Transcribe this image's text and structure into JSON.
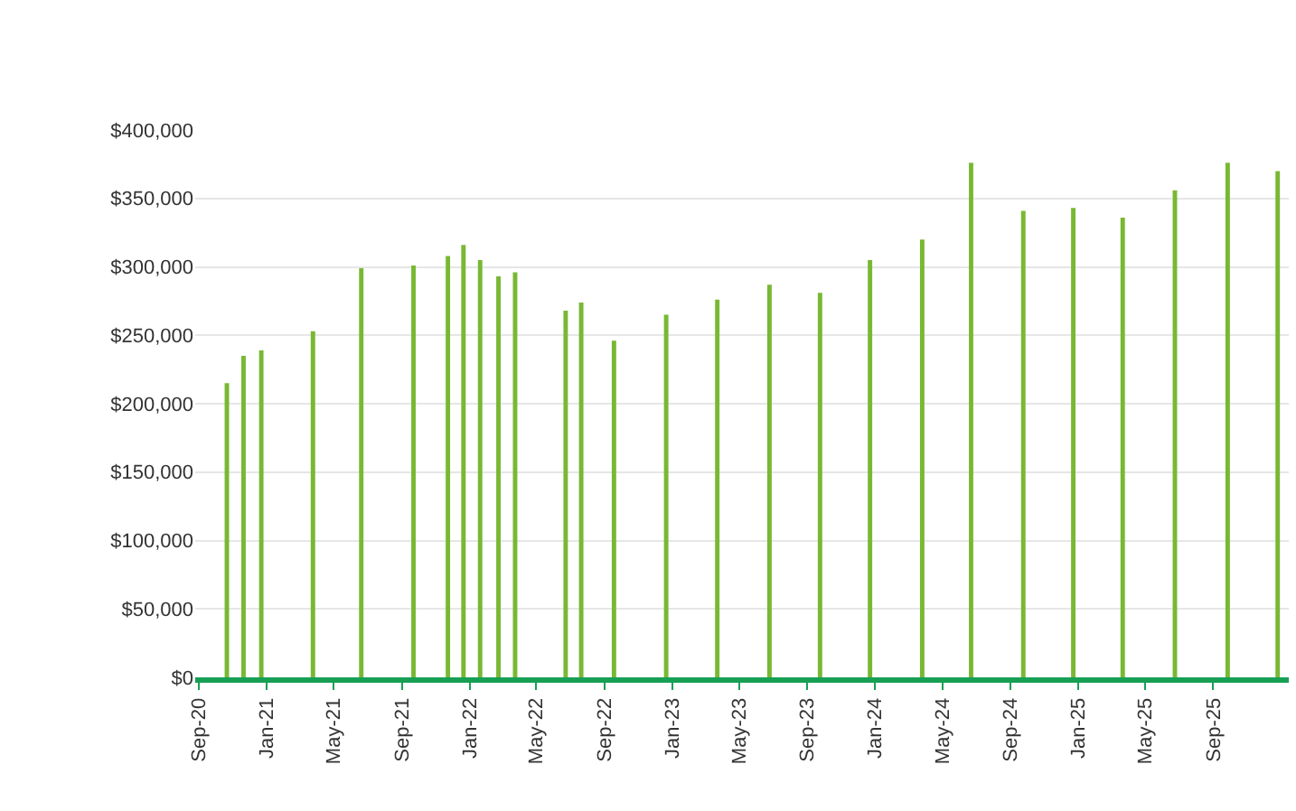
{
  "chart_data": {
    "type": "bar",
    "color": "#78b833",
    "x": [
      "2020-10-21",
      "2020-11-20",
      "2020-12-22",
      "2021-03-25",
      "2021-06-20",
      "2021-09-22",
      "2021-11-23",
      "2021-12-21",
      "2022-01-20",
      "2022-02-22",
      "2022-03-24",
      "2022-06-23",
      "2022-07-21",
      "2022-09-18",
      "2022-12-21",
      "2023-03-23",
      "2023-06-25",
      "2023-09-24",
      "2023-12-23",
      "2024-03-26",
      "2024-06-22",
      "2024-09-24",
      "2024-12-23",
      "2025-03-22",
      "2025-06-24",
      "2025-09-27",
      "2025-12-26"
    ],
    "values": [
      215000,
      235000,
      239000,
      253000,
      299000,
      301000,
      308000,
      316000,
      305000,
      293000,
      296000,
      268000,
      274000,
      246000,
      265000,
      276000,
      287000,
      281000,
      305000,
      320000,
      376000,
      341000,
      343000,
      336000,
      356000,
      376000,
      370000
    ],
    "xlim": [
      "2020-08-25",
      "2026-01-15"
    ],
    "xticks": [
      {
        "value": "2020-09-01",
        "label": "Sep-20"
      },
      {
        "value": "2021-01-01",
        "label": "Jan-21"
      },
      {
        "value": "2021-05-01",
        "label": "May-21"
      },
      {
        "value": "2021-09-01",
        "label": "Sep-21"
      },
      {
        "value": "2022-01-01",
        "label": "Jan-22"
      },
      {
        "value": "2022-05-01",
        "label": "May-22"
      },
      {
        "value": "2022-09-01",
        "label": "Sep-22"
      },
      {
        "value": "2023-01-01",
        "label": "Jan-23"
      },
      {
        "value": "2023-05-01",
        "label": "May-23"
      },
      {
        "value": "2023-09-01",
        "label": "Sep-23"
      },
      {
        "value": "2024-01-01",
        "label": "Jan-24"
      },
      {
        "value": "2024-05-01",
        "label": "May-24"
      },
      {
        "value": "2024-09-01",
        "label": "Sep-24"
      },
      {
        "value": "2025-01-01",
        "label": "Jan-25"
      },
      {
        "value": "2025-05-01",
        "label": "May-25"
      },
      {
        "value": "2025-09-01",
        "label": "Sep-25"
      }
    ],
    "ylim": [
      0,
      400000
    ],
    "yticks": [
      {
        "value": 0,
        "label": "$0"
      },
      {
        "value": 50000,
        "label": "$50,000"
      },
      {
        "value": 100000,
        "label": "$100,000"
      },
      {
        "value": 150000,
        "label": "$150,000"
      },
      {
        "value": 200000,
        "label": "$200,000"
      },
      {
        "value": 250000,
        "label": "$250,000"
      },
      {
        "value": 300000,
        "label": "$300,000"
      },
      {
        "value": 350000,
        "label": "$350,000"
      },
      {
        "value": 400000,
        "label": "$400,000"
      }
    ],
    "grid": "y"
  }
}
